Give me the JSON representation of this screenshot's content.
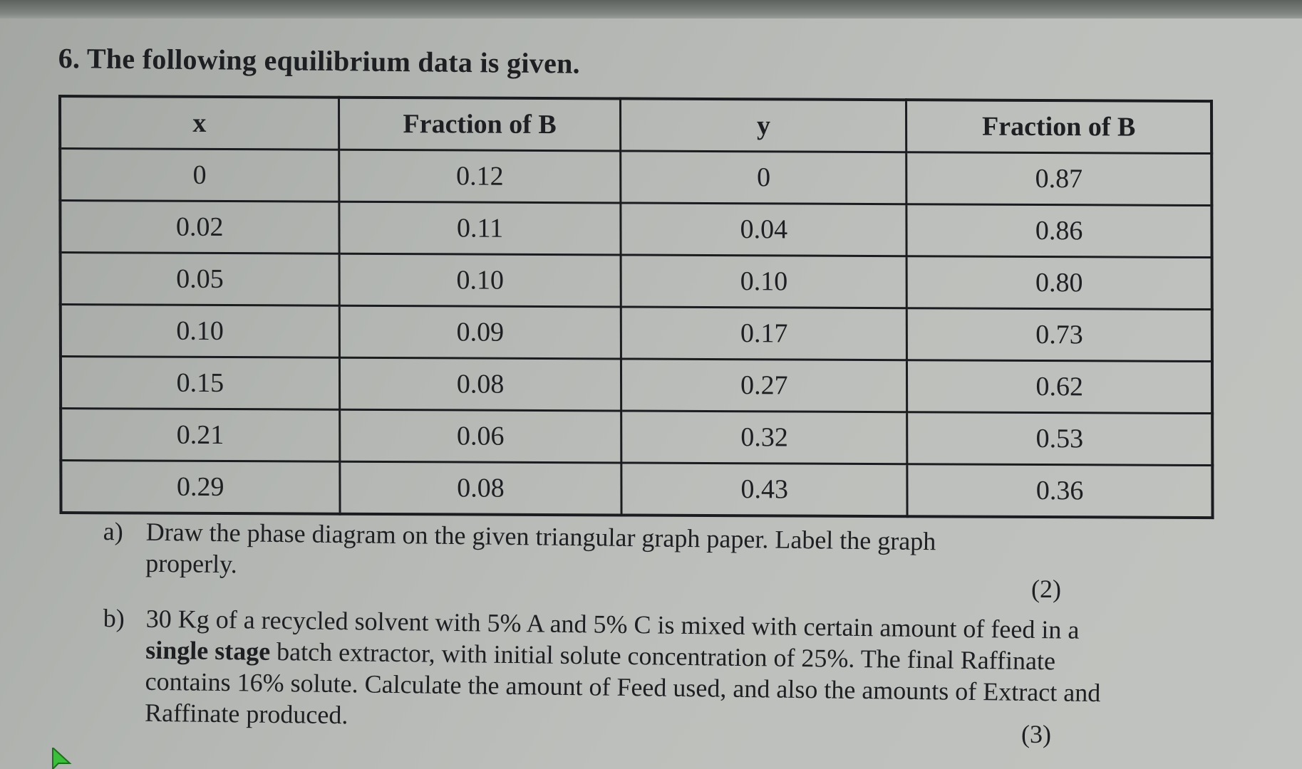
{
  "question": {
    "title": "6. The following equilibrium data is given."
  },
  "table": {
    "headers": [
      "x",
      "Fraction of B",
      "y",
      "Fraction of B"
    ],
    "rows": [
      [
        "0",
        "0.12",
        "0",
        "0.87"
      ],
      [
        "0.02",
        "0.11",
        "0.04",
        "0.86"
      ],
      [
        "0.05",
        "0.10",
        "0.10",
        "0.80"
      ],
      [
        "0.10",
        "0.09",
        "0.17",
        "0.73"
      ],
      [
        "0.15",
        "0.08",
        "0.27",
        "0.62"
      ],
      [
        "0.21",
        "0.06",
        "0.32",
        "0.53"
      ],
      [
        "0.29",
        "0.08",
        "0.43",
        "0.36"
      ]
    ]
  },
  "part_a": {
    "label": "a)",
    "line1": "Draw the phase diagram on the given triangular graph paper. Label the graph",
    "line2": "properly.",
    "marks": "(2)"
  },
  "part_b": {
    "label": "b)",
    "line1": "30 Kg of a recycled solvent with 5% A and 5% C is mixed with certain amount of feed in a",
    "line2_bold": "single stage",
    "line2_rest": " batch extractor, with initial solute concentration of 25%. The final Raffinate",
    "line3": "contains 16% solute. Calculate the amount of Feed used, and also the amounts of Extract and",
    "line4": "Raffinate produced.",
    "marks": "(3)"
  },
  "colors": {
    "paper": "#bdbfbc",
    "ink": "#1e1f22",
    "cursor": "#3bbf3b"
  },
  "icons": {
    "cursor": "mouse-pointer-icon"
  }
}
